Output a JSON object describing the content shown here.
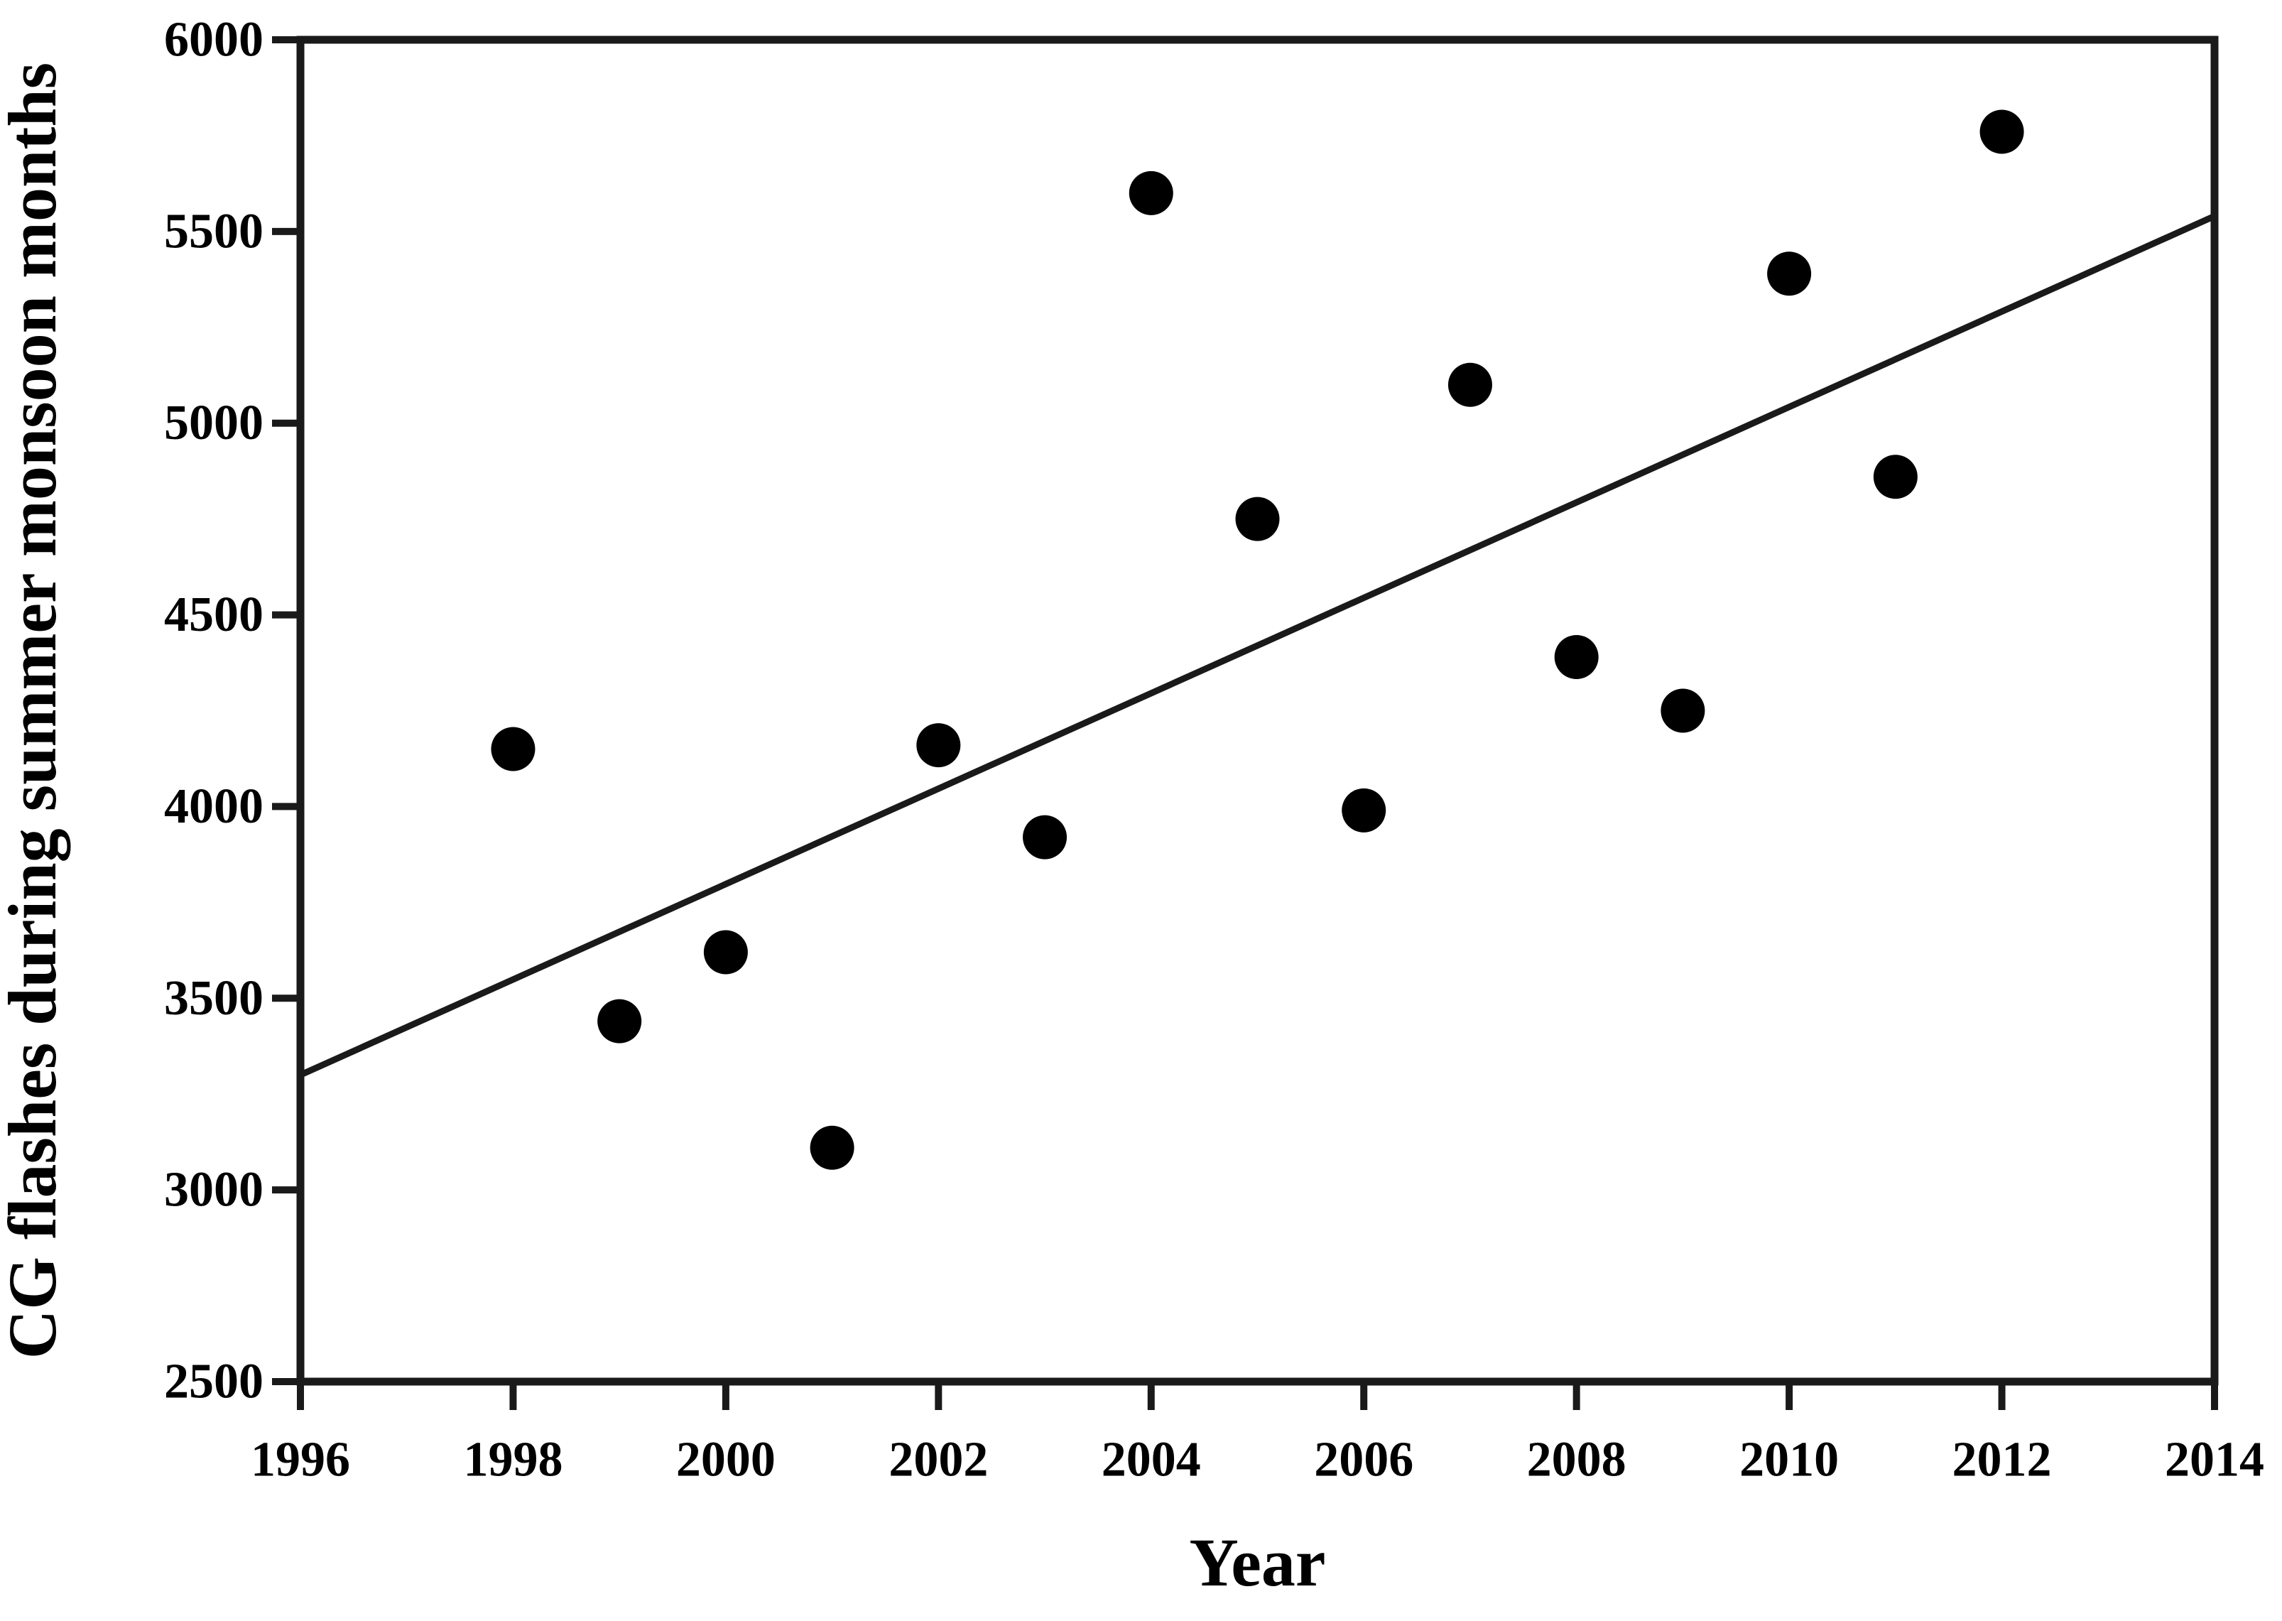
{
  "chart_data": {
    "type": "scatter",
    "title": "",
    "xlabel": "Year",
    "ylabel": "CG flashes during summer monsoon months",
    "xlim": [
      1996,
      2014
    ],
    "ylim": [
      2500,
      6000
    ],
    "x_ticks": [
      1996,
      1998,
      2000,
      2002,
      2004,
      2006,
      2008,
      2010,
      2012,
      2014
    ],
    "y_ticks": [
      2500,
      3000,
      3500,
      4000,
      4500,
      5000,
      5500,
      6000
    ],
    "grid": false,
    "legend": "none",
    "frame": "full-box",
    "marker": "filled-circle",
    "marker_color": "#000000",
    "line_color": "#1a1a1a",
    "background_color": "#ffffff",
    "points": [
      {
        "year": 1998,
        "flashes": 4150
      },
      {
        "year": 1999,
        "flashes": 3440
      },
      {
        "year": 2000,
        "flashes": 3620
      },
      {
        "year": 2001,
        "flashes": 3110
      },
      {
        "year": 2002,
        "flashes": 4160
      },
      {
        "year": 2003,
        "flashes": 3920
      },
      {
        "year": 2004,
        "flashes": 5600
      },
      {
        "year": 2005,
        "flashes": 4750
      },
      {
        "year": 2006,
        "flashes": 3990
      },
      {
        "year": 2007,
        "flashes": 5100
      },
      {
        "year": 2008,
        "flashes": 4390
      },
      {
        "year": 2009,
        "flashes": 4250
      },
      {
        "year": 2010,
        "flashes": 5390
      },
      {
        "year": 2011,
        "flashes": 4860
      },
      {
        "year": 2012,
        "flashes": 5760
      }
    ],
    "trend_line": {
      "x_start": 1996,
      "y_start": 3300,
      "x_end": 2014,
      "y_end": 5540
    }
  }
}
